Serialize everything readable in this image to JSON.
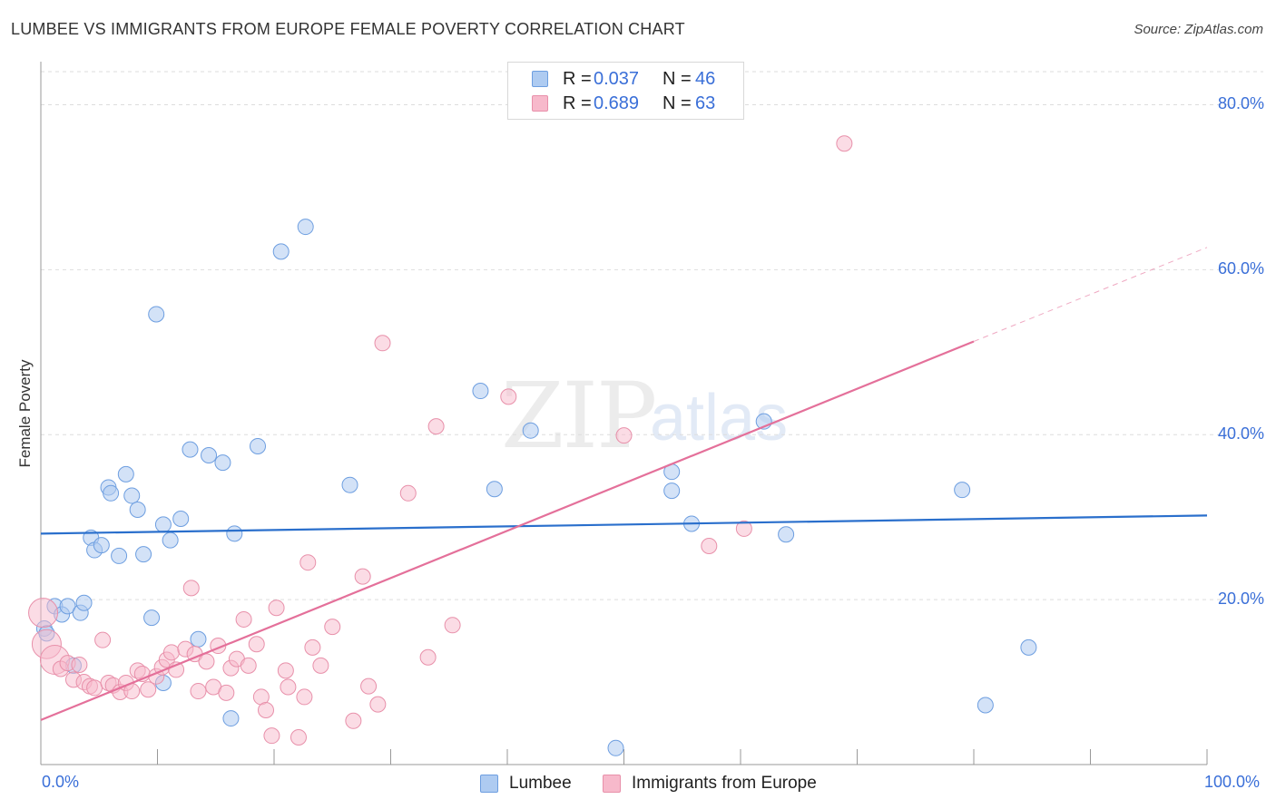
{
  "title": "LUMBEE VS IMMIGRANTS FROM EUROPE FEMALE POVERTY CORRELATION CHART",
  "source": "Source: ZipAtlas.com",
  "watermark": {
    "zip": "ZIP",
    "atlas": "atlas"
  },
  "colors": {
    "lumbee_fill": "#aecbf1",
    "lumbee_stroke": "#6d9ee0",
    "lumbee_line": "#2a6fcc",
    "europe_fill": "#f7b9cb",
    "europe_stroke": "#e890aa",
    "europe_line": "#e4709a",
    "axis_label": "#3a6fd8",
    "grid": "#dddddd"
  },
  "legend": {
    "rows": [
      {
        "r_label": "R =",
        "r_value": "0.037",
        "n_label": "N =",
        "n_value": "46"
      },
      {
        "r_label": "R =",
        "r_value": "0.689",
        "n_label": "N =",
        "n_value": "63"
      }
    ]
  },
  "bottom_legend": {
    "lumbee": "Lumbee",
    "europe": "Immigrants from Europe"
  },
  "chart_data": {
    "type": "scatter",
    "title": "LUMBEE VS IMMIGRANTS FROM EUROPE FEMALE POVERTY CORRELATION CHART",
    "xlabel": "",
    "ylabel": "Female Poverty",
    "xlim": [
      0,
      100
    ],
    "ylim": [
      0,
      85
    ],
    "x_tick_labels": [
      "0.0%",
      "100.0%"
    ],
    "y_ticks": [
      20,
      40,
      60,
      80
    ],
    "y_tick_labels": [
      "20.0%",
      "40.0%",
      "60.0%",
      "80.0%"
    ],
    "grid": true,
    "series": [
      {
        "name": "Lumbee",
        "r": 0.037,
        "n": 46,
        "trend": {
          "x": [
            0,
            100
          ],
          "y": [
            28.0,
            30.2
          ]
        },
        "points": [
          [
            0.3,
            16.5
          ],
          [
            0.5,
            15.9
          ],
          [
            1.2,
            19.2
          ],
          [
            1.8,
            18.2
          ],
          [
            2.3,
            19.2
          ],
          [
            2.8,
            12.0
          ],
          [
            3.4,
            18.4
          ],
          [
            3.7,
            19.6
          ],
          [
            4.3,
            27.5
          ],
          [
            4.6,
            26.0
          ],
          [
            5.2,
            26.6
          ],
          [
            5.8,
            33.6
          ],
          [
            6.0,
            32.9
          ],
          [
            6.7,
            25.3
          ],
          [
            7.3,
            35.2
          ],
          [
            7.8,
            32.6
          ],
          [
            8.3,
            30.9
          ],
          [
            8.8,
            25.5
          ],
          [
            9.5,
            17.8
          ],
          [
            9.9,
            54.6
          ],
          [
            10.5,
            9.9
          ],
          [
            10.5,
            29.1
          ],
          [
            11.1,
            27.2
          ],
          [
            12.0,
            29.8
          ],
          [
            12.8,
            38.2
          ],
          [
            13.5,
            15.2
          ],
          [
            14.4,
            37.5
          ],
          [
            15.6,
            36.6
          ],
          [
            16.3,
            5.6
          ],
          [
            16.6,
            28.0
          ],
          [
            18.6,
            38.6
          ],
          [
            20.6,
            62.2
          ],
          [
            22.7,
            65.2
          ],
          [
            26.5,
            33.9
          ],
          [
            37.7,
            45.3
          ],
          [
            38.9,
            33.4
          ],
          [
            42.0,
            40.5
          ],
          [
            49.3,
            2.0
          ],
          [
            54.1,
            35.5
          ],
          [
            54.1,
            33.2
          ],
          [
            55.8,
            29.2
          ],
          [
            62.0,
            41.6
          ],
          [
            63.9,
            27.9
          ],
          [
            79.0,
            33.3
          ],
          [
            81.0,
            7.2
          ],
          [
            84.7,
            14.2
          ]
        ]
      },
      {
        "name": "Immigrants from Europe",
        "r": 0.689,
        "n": 63,
        "trend": {
          "x": [
            0,
            80
          ],
          "y": [
            5.4,
            51.3
          ]
        },
        "trend_dashed": {
          "x": [
            80,
            100
          ],
          "y": [
            51.3,
            62.7
          ]
        },
        "points": [
          [
            0.2,
            18.4
          ],
          [
            0.5,
            14.6
          ],
          [
            1.2,
            12.7
          ],
          [
            1.7,
            11.6
          ],
          [
            2.3,
            12.3
          ],
          [
            2.8,
            10.3
          ],
          [
            3.3,
            12.1
          ],
          [
            3.7,
            10.0
          ],
          [
            4.2,
            9.5
          ],
          [
            4.6,
            9.3
          ],
          [
            5.3,
            15.1
          ],
          [
            5.8,
            9.9
          ],
          [
            6.2,
            9.6
          ],
          [
            6.8,
            8.8
          ],
          [
            7.3,
            9.9
          ],
          [
            7.8,
            8.9
          ],
          [
            8.3,
            11.4
          ],
          [
            8.7,
            11.0
          ],
          [
            9.2,
            9.1
          ],
          [
            9.9,
            10.7
          ],
          [
            10.4,
            11.8
          ],
          [
            10.8,
            12.7
          ],
          [
            11.2,
            13.6
          ],
          [
            11.6,
            11.5
          ],
          [
            12.4,
            14.0
          ],
          [
            12.9,
            21.4
          ],
          [
            13.2,
            13.4
          ],
          [
            13.5,
            8.9
          ],
          [
            14.2,
            12.5
          ],
          [
            14.8,
            9.4
          ],
          [
            15.2,
            14.4
          ],
          [
            15.9,
            8.7
          ],
          [
            16.3,
            11.7
          ],
          [
            16.8,
            12.8
          ],
          [
            17.4,
            17.6
          ],
          [
            17.8,
            12.0
          ],
          [
            18.5,
            14.6
          ],
          [
            18.9,
            8.2
          ],
          [
            19.3,
            6.6
          ],
          [
            19.8,
            3.5
          ],
          [
            20.2,
            19.0
          ],
          [
            21.0,
            11.4
          ],
          [
            21.2,
            9.4
          ],
          [
            22.1,
            3.3
          ],
          [
            22.6,
            8.2
          ],
          [
            22.9,
            24.5
          ],
          [
            23.3,
            14.2
          ],
          [
            24.0,
            12.0
          ],
          [
            25.0,
            16.7
          ],
          [
            26.8,
            5.3
          ],
          [
            27.6,
            22.8
          ],
          [
            28.1,
            9.5
          ],
          [
            28.9,
            7.3
          ],
          [
            29.3,
            51.1
          ],
          [
            31.5,
            32.9
          ],
          [
            33.2,
            13.0
          ],
          [
            33.9,
            41.0
          ],
          [
            35.3,
            16.9
          ],
          [
            40.1,
            44.6
          ],
          [
            50.0,
            39.9
          ],
          [
            57.3,
            26.5
          ],
          [
            60.3,
            28.6
          ],
          [
            68.9,
            75.3
          ]
        ]
      }
    ]
  }
}
